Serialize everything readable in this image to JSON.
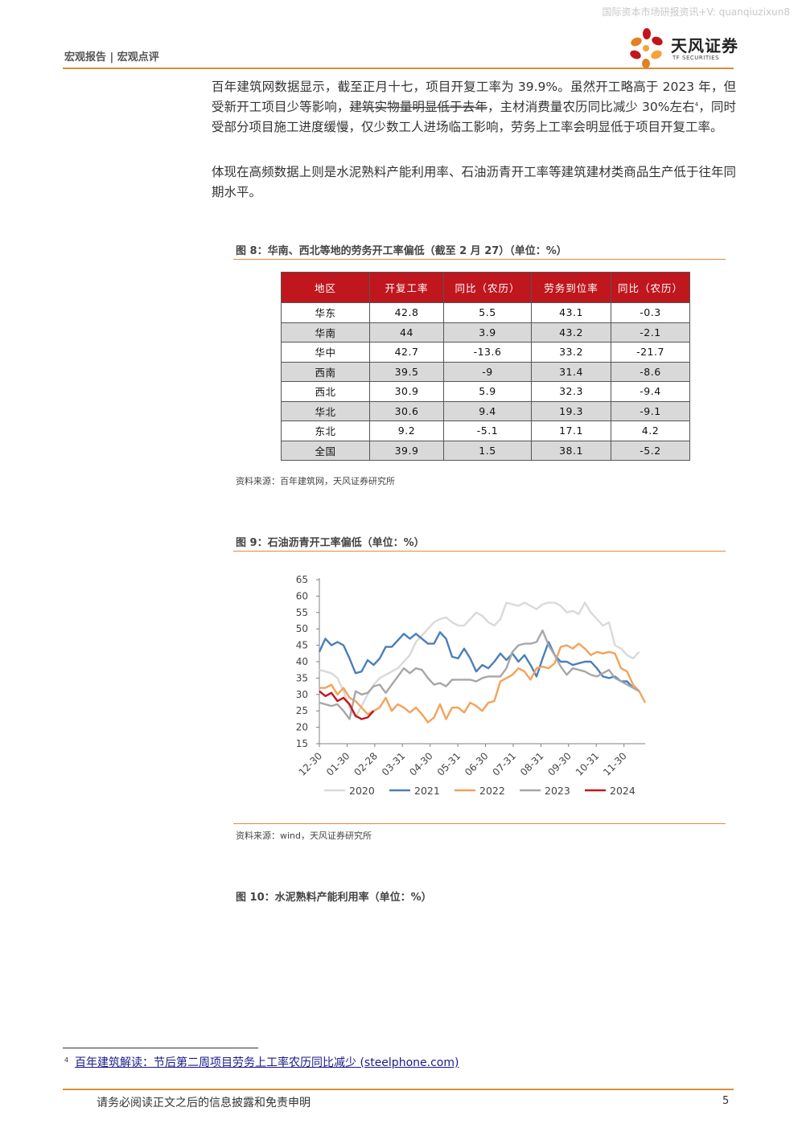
{
  "watermark": "国际资本市场研报资讯+V: quanqiuzixun8",
  "header": {
    "report_type": "宏观报告 | 宏观点评",
    "logo_cn": "天风证券",
    "logo_en": "TF SECURITIES",
    "logo_colors": [
      "#c0161e",
      "#e67e22",
      "#f2a33a"
    ]
  },
  "paragraphs": {
    "p1_a": "百年建筑网数据显示，截至正月十七，项目开复工率为 39.9%。虽然开工略高于 2023 年，但受新开工项目少等影响，",
    "p1_strike": "建筑实物量明显低于去年",
    "p1_b": "，主材消费量农历同比减少 30%左右",
    "p1_sup": "4",
    "p1_c": "，同时受部分项目施工进度缓慢，仅少数工人进场临工影响，劳务上工率会明显低于项目开复工率。",
    "p2": "体现在高频数据上则是水泥熟料产能利用率、石油沥青开工率等建筑建材类商品生产低于往年同期水平。"
  },
  "figure8": {
    "title": "图 8：华南、西北等地的劳务开工率偏低（截至 2 月 27）（单位：%）",
    "source": "资料来源：百年建筑网，天风证券研究所",
    "header_color": "#c0161e",
    "columns": [
      "地区",
      "开复工率",
      "同比（农历）",
      "劳务到位率",
      "同比（农历）"
    ],
    "rows": [
      [
        "华东",
        "42.8",
        "5.5",
        "43.1",
        "-0.3"
      ],
      [
        "华南",
        "44",
        "3.9",
        "43.2",
        "-2.1"
      ],
      [
        "华中",
        "42.7",
        "-13.6",
        "33.2",
        "-21.7"
      ],
      [
        "西南",
        "39.5",
        "-9",
        "31.4",
        "-8.6"
      ],
      [
        "西北",
        "30.9",
        "5.9",
        "32.3",
        "-9.4"
      ],
      [
        "华北",
        "30.6",
        "9.4",
        "19.3",
        "-9.1"
      ],
      [
        "东北",
        "9.2",
        "-5.1",
        "17.1",
        "4.2"
      ],
      [
        "全国",
        "39.9",
        "1.5",
        "38.1",
        "-5.2"
      ]
    ]
  },
  "figure9": {
    "title": "图 9：石油沥青开工率偏低（单位：%）",
    "source": "资料来源：wind，天风证券研究所"
  },
  "figure10": {
    "title": "图 10：水泥熟料产能利用率（单位：%）"
  },
  "chart_data": {
    "type": "line",
    "title": "",
    "xlabel": "",
    "ylabel": "",
    "x_ticks": [
      "12-30",
      "01-30",
      "02-28",
      "03-31",
      "04-30",
      "05-31",
      "06-30",
      "07-31",
      "08-31",
      "09-30",
      "10-31",
      "11-30"
    ],
    "ylim": [
      15,
      65
    ],
    "y_ticks": [
      15,
      20,
      25,
      30,
      35,
      40,
      45,
      50,
      55,
      60,
      65
    ],
    "grid": false,
    "legend_position": "bottom",
    "series": [
      {
        "name": "2020",
        "color": "#d9d9d9",
        "values": [
          37.5,
          37,
          36.5,
          35,
          31,
          26,
          23,
          26.5,
          30,
          33,
          35,
          36,
          37,
          38,
          40,
          42,
          46,
          48,
          50,
          52,
          53,
          53.5,
          52,
          51,
          51,
          53,
          55,
          54,
          52,
          51,
          53,
          58,
          57.5,
          57,
          58,
          57,
          56,
          57.5,
          58,
          58,
          57,
          55,
          55.5,
          54.5,
          58,
          55,
          53,
          51,
          52,
          45,
          44,
          42,
          41,
          43
        ]
      },
      {
        "name": "2021",
        "color": "#4a7ebb",
        "values": [
          43,
          47,
          45,
          46,
          45,
          41,
          36.5,
          37,
          40.5,
          39,
          41,
          44.5,
          44.5,
          46.5,
          48.5,
          47,
          48.5,
          47,
          45.5,
          45.5,
          49,
          47,
          41.5,
          41,
          44,
          41,
          37,
          39,
          38,
          40,
          42.5,
          40.5,
          42.5,
          40,
          42,
          39,
          35.5,
          41,
          46,
          42,
          40,
          40,
          39,
          39.5,
          40,
          40,
          38,
          35.5,
          35,
          35.5,
          34,
          34,
          32
        ]
      },
      {
        "name": "2022",
        "color": "#f4a259",
        "values": [
          32,
          32,
          33,
          30,
          32,
          29,
          28,
          26,
          24,
          25,
          26,
          29,
          25,
          27,
          26,
          24.5,
          26,
          24,
          21.5,
          23,
          27,
          22.5,
          26,
          26,
          24.5,
          27.5,
          26.5,
          25,
          27.5,
          28,
          34,
          35,
          36,
          38,
          37,
          34.5,
          38,
          38.5,
          38,
          39.5,
          44.5,
          45,
          44,
          45.5,
          44,
          42,
          43,
          42.5,
          43,
          42.5,
          38,
          37,
          33,
          31,
          27.5
        ]
      },
      {
        "name": "2023",
        "color": "#a6a6a6",
        "values": [
          27.5,
          27,
          26.5,
          27,
          25,
          22.5,
          31,
          30,
          30.5,
          32.5,
          33,
          30.5,
          33,
          35.5,
          38,
          36.5,
          38,
          37.5,
          35,
          33,
          33.5,
          32.5,
          34.5,
          34.5,
          34.5,
          34.5,
          34,
          35,
          35.5,
          35.5,
          35.5,
          38,
          43,
          45,
          45.5,
          45.5,
          46,
          49.5,
          45,
          42,
          38.5,
          36,
          38,
          37.5,
          37,
          36,
          35.5,
          36.5,
          37.5,
          35,
          34,
          33,
          32,
          31
        ]
      },
      {
        "name": "2024",
        "color": "#c0161e",
        "values": [
          31,
          29.5,
          30.5,
          28,
          29,
          27,
          23.5,
          22.5,
          23,
          25
        ]
      }
    ]
  },
  "footnote": {
    "number": "4",
    "text": "百年建筑解读：节后第二周项目劳务上工率农历同比减少 (steelphone.com)"
  },
  "footer": {
    "disclaimer": "请务必阅读正文之后的信息披露和免责申明",
    "page": "5"
  }
}
